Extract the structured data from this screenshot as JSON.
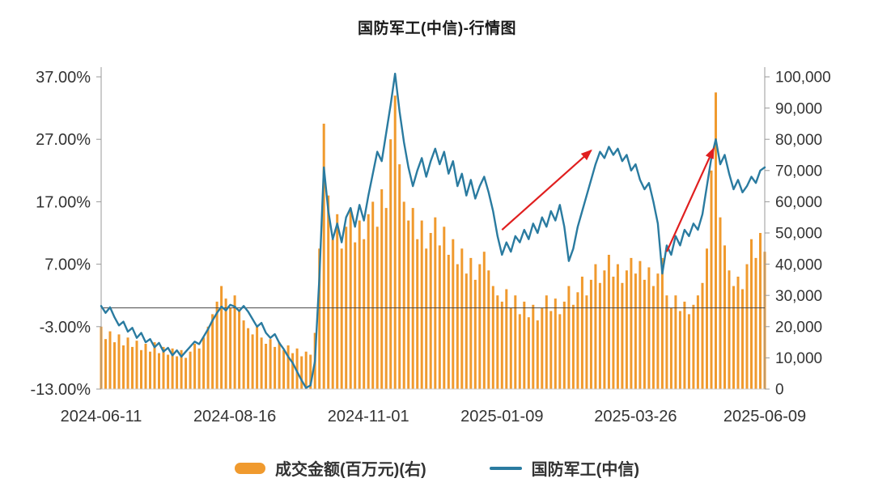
{
  "chart_data": {
    "type": "bar+line",
    "title": "国防军工(中信)-行情图",
    "background": "#ffffff",
    "x_axis": {
      "n_points": 150,
      "tick_indices": [
        0,
        30,
        60,
        90,
        120,
        149
      ],
      "tick_labels": [
        "2024-06-11",
        "2024-08-16",
        "2024-11-01",
        "2025-01-09",
        "2025-03-26",
        "2025-06-09"
      ]
    },
    "y_left": {
      "min": -13,
      "max": 37,
      "unit": "%",
      "ticks": [
        {
          "label": "37.00%",
          "value": 37
        },
        {
          "label": "27.00%",
          "value": 27
        },
        {
          "label": "17.00%",
          "value": 17
        },
        {
          "label": "7.00%",
          "value": 7
        },
        {
          "label": "-3.00%",
          "value": -3
        },
        {
          "label": "-13.00%",
          "value": -13
        }
      ]
    },
    "y_right": {
      "min": 0,
      "max": 100000,
      "ticks": [
        {
          "label": "100,000",
          "value": 100000
        },
        {
          "label": "90,000",
          "value": 90000
        },
        {
          "label": "80,000",
          "value": 80000
        },
        {
          "label": "70,000",
          "value": 70000
        },
        {
          "label": "60,000",
          "value": 60000
        },
        {
          "label": "50,000",
          "value": 50000
        },
        {
          "label": "40,000",
          "value": 40000
        },
        {
          "label": "30,000",
          "value": 30000
        },
        {
          "label": "20,000",
          "value": 20000
        },
        {
          "label": "10,000",
          "value": 10000
        },
        {
          "label": "0",
          "value": 0
        }
      ]
    },
    "zero_line_value": 0,
    "series": [
      {
        "name": "成交金额(百万元)(右)",
        "type": "bar",
        "axis": "right",
        "color": "#F09A2E",
        "values": [
          20000,
          16000,
          18500,
          15000,
          17500,
          14000,
          16500,
          13500,
          15500,
          12500,
          14500,
          12000,
          15000,
          11500,
          13500,
          11000,
          13000,
          10500,
          12500,
          10000,
          12000,
          14500,
          13000,
          16500,
          20000,
          24000,
          28000,
          33000,
          29000,
          26000,
          30000,
          25000,
          22000,
          19500,
          17500,
          20000,
          16500,
          14500,
          16000,
          13500,
          15000,
          12500,
          14000,
          11500,
          13000,
          10500,
          12000,
          11000,
          18000,
          45000,
          85000,
          62000,
          48000,
          56000,
          45000,
          52000,
          58000,
          47000,
          54000,
          48000,
          56000,
          60000,
          52000,
          64000,
          58000,
          80000,
          94000,
          72000,
          60000,
          54000,
          58000,
          48000,
          54000,
          45000,
          50000,
          55000,
          46000,
          52000,
          43000,
          48000,
          40000,
          45000,
          37000,
          42000,
          35000,
          40000,
          44000,
          38000,
          33000,
          30000,
          28000,
          32000,
          26000,
          30000,
          24000,
          28000,
          23000,
          27000,
          22000,
          26000,
          30000,
          25000,
          29000,
          24000,
          28000,
          33000,
          27000,
          31000,
          36000,
          30000,
          35000,
          40000,
          34000,
          38000,
          43000,
          36000,
          40000,
          34000,
          38000,
          42000,
          37000,
          41000,
          35000,
          39000,
          33000,
          37000,
          42000,
          30000,
          26000,
          30000,
          25000,
          28000,
          24000,
          27000,
          30000,
          34000,
          45000,
          70000,
          95000,
          55000,
          46000,
          38000,
          33000,
          36000,
          32000,
          40000,
          48000,
          42000,
          50000,
          44000
        ]
      },
      {
        "name": "国防军工(中信)",
        "type": "line",
        "axis": "left",
        "color": "#2A7BA0",
        "values": [
          0.3,
          -0.8,
          0.1,
          -1.5,
          -2.8,
          -2.2,
          -3.8,
          -3.2,
          -4.8,
          -4.0,
          -5.5,
          -5.0,
          -6.3,
          -5.6,
          -7.0,
          -6.4,
          -7.6,
          -6.8,
          -7.8,
          -7.0,
          -6.2,
          -5.4,
          -5.8,
          -4.6,
          -3.4,
          -2.0,
          -0.8,
          0.2,
          -0.4,
          0.5,
          0.2,
          -0.5,
          0.3,
          -0.6,
          -1.8,
          -3.0,
          -2.4,
          -4.0,
          -4.8,
          -4.2,
          -5.6,
          -6.6,
          -7.8,
          -8.8,
          -10.2,
          -11.6,
          -12.8,
          -12.4,
          -8.5,
          5.0,
          22.5,
          15.5,
          11.0,
          13.5,
          10.5,
          14.5,
          16.0,
          13.0,
          16.5,
          14.0,
          18.0,
          21.5,
          25.0,
          23.5,
          28.0,
          32.5,
          37.5,
          31.5,
          26.5,
          22.5,
          19.5,
          22.0,
          24.0,
          21.0,
          23.5,
          25.5,
          23.0,
          25.0,
          21.5,
          23.5,
          19.5,
          21.5,
          18.0,
          20.5,
          17.5,
          19.5,
          21.0,
          18.5,
          15.5,
          11.5,
          8.5,
          10.5,
          9.0,
          11.5,
          10.5,
          12.5,
          11.0,
          13.5,
          12.0,
          14.5,
          13.0,
          15.5,
          14.0,
          16.5,
          13.0,
          7.5,
          9.5,
          13.0,
          15.5,
          18.0,
          20.5,
          23.0,
          25.0,
          24.0,
          25.8,
          24.5,
          25.5,
          23.5,
          24.5,
          22.0,
          23.0,
          20.5,
          19.0,
          20.0,
          17.0,
          13.5,
          5.5,
          10.0,
          8.5,
          11.5,
          10.0,
          12.5,
          11.5,
          13.5,
          12.5,
          15.0,
          19.5,
          24.0,
          27.0,
          23.0,
          24.5,
          21.5,
          19.0,
          20.5,
          18.5,
          19.5,
          21.0,
          20.0,
          22.0,
          22.5
        ]
      }
    ],
    "annotations": {
      "color": "#E01F1F",
      "arrows": [
        {
          "from_index": 90,
          "from_pct": 12.5,
          "to_index": 110,
          "to_pct": 25.2
        },
        {
          "from_index": 127,
          "from_pct": 9.0,
          "to_index": 137.5,
          "to_pct": 25.5
        }
      ]
    }
  }
}
